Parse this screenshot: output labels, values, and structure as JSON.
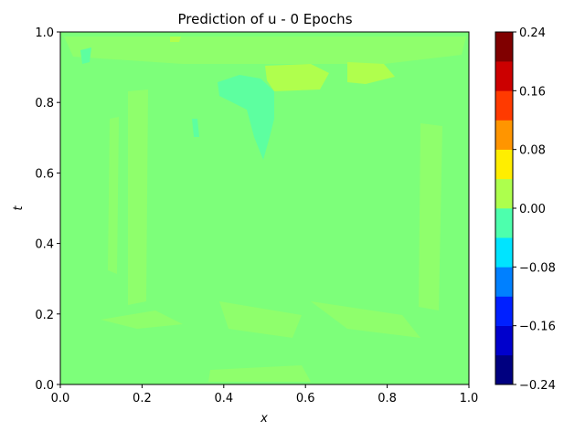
{
  "chart_data": {
    "type": "contour",
    "title": "Prediction of u - 0 Epochs",
    "xlabel": "x",
    "ylabel": "t",
    "xlim": [
      0,
      1
    ],
    "xticks": [
      {
        "value": 0,
        "label": "0.0"
      },
      0.2,
      0.4,
      0.6,
      0.8,
      {
        "value": 1,
        "label": "1.0"
      }
    ],
    "ylim": [
      0,
      1
    ],
    "yticks": [
      {
        "value": 0,
        "label": "0.0"
      },
      0.2,
      0.4,
      0.6,
      0.8,
      {
        "value": 1,
        "label": "1.0"
      }
    ],
    "field_color": "#7dff7a",
    "colorbar_lim": [
      -0.24,
      0.24
    ],
    "colorbar_ticks": [
      {
        "value": -0.24,
        "label": "−0.24"
      },
      {
        "value": -0.16,
        "label": "−0.16"
      },
      {
        "value": -0.08,
        "label": "−0.08"
      },
      {
        "value": 0,
        "label": "0.00"
      },
      0.08,
      0.16,
      0.24
    ],
    "colors": [
      "#000080",
      "#0000cc",
      "#0020ff",
      "#0080ff",
      "#00e4ff",
      "#4dffad",
      "#adff4d",
      "#ffee00",
      "#ff9500",
      "#ff3a00",
      "#cc0000",
      "#800000"
    ]
  }
}
